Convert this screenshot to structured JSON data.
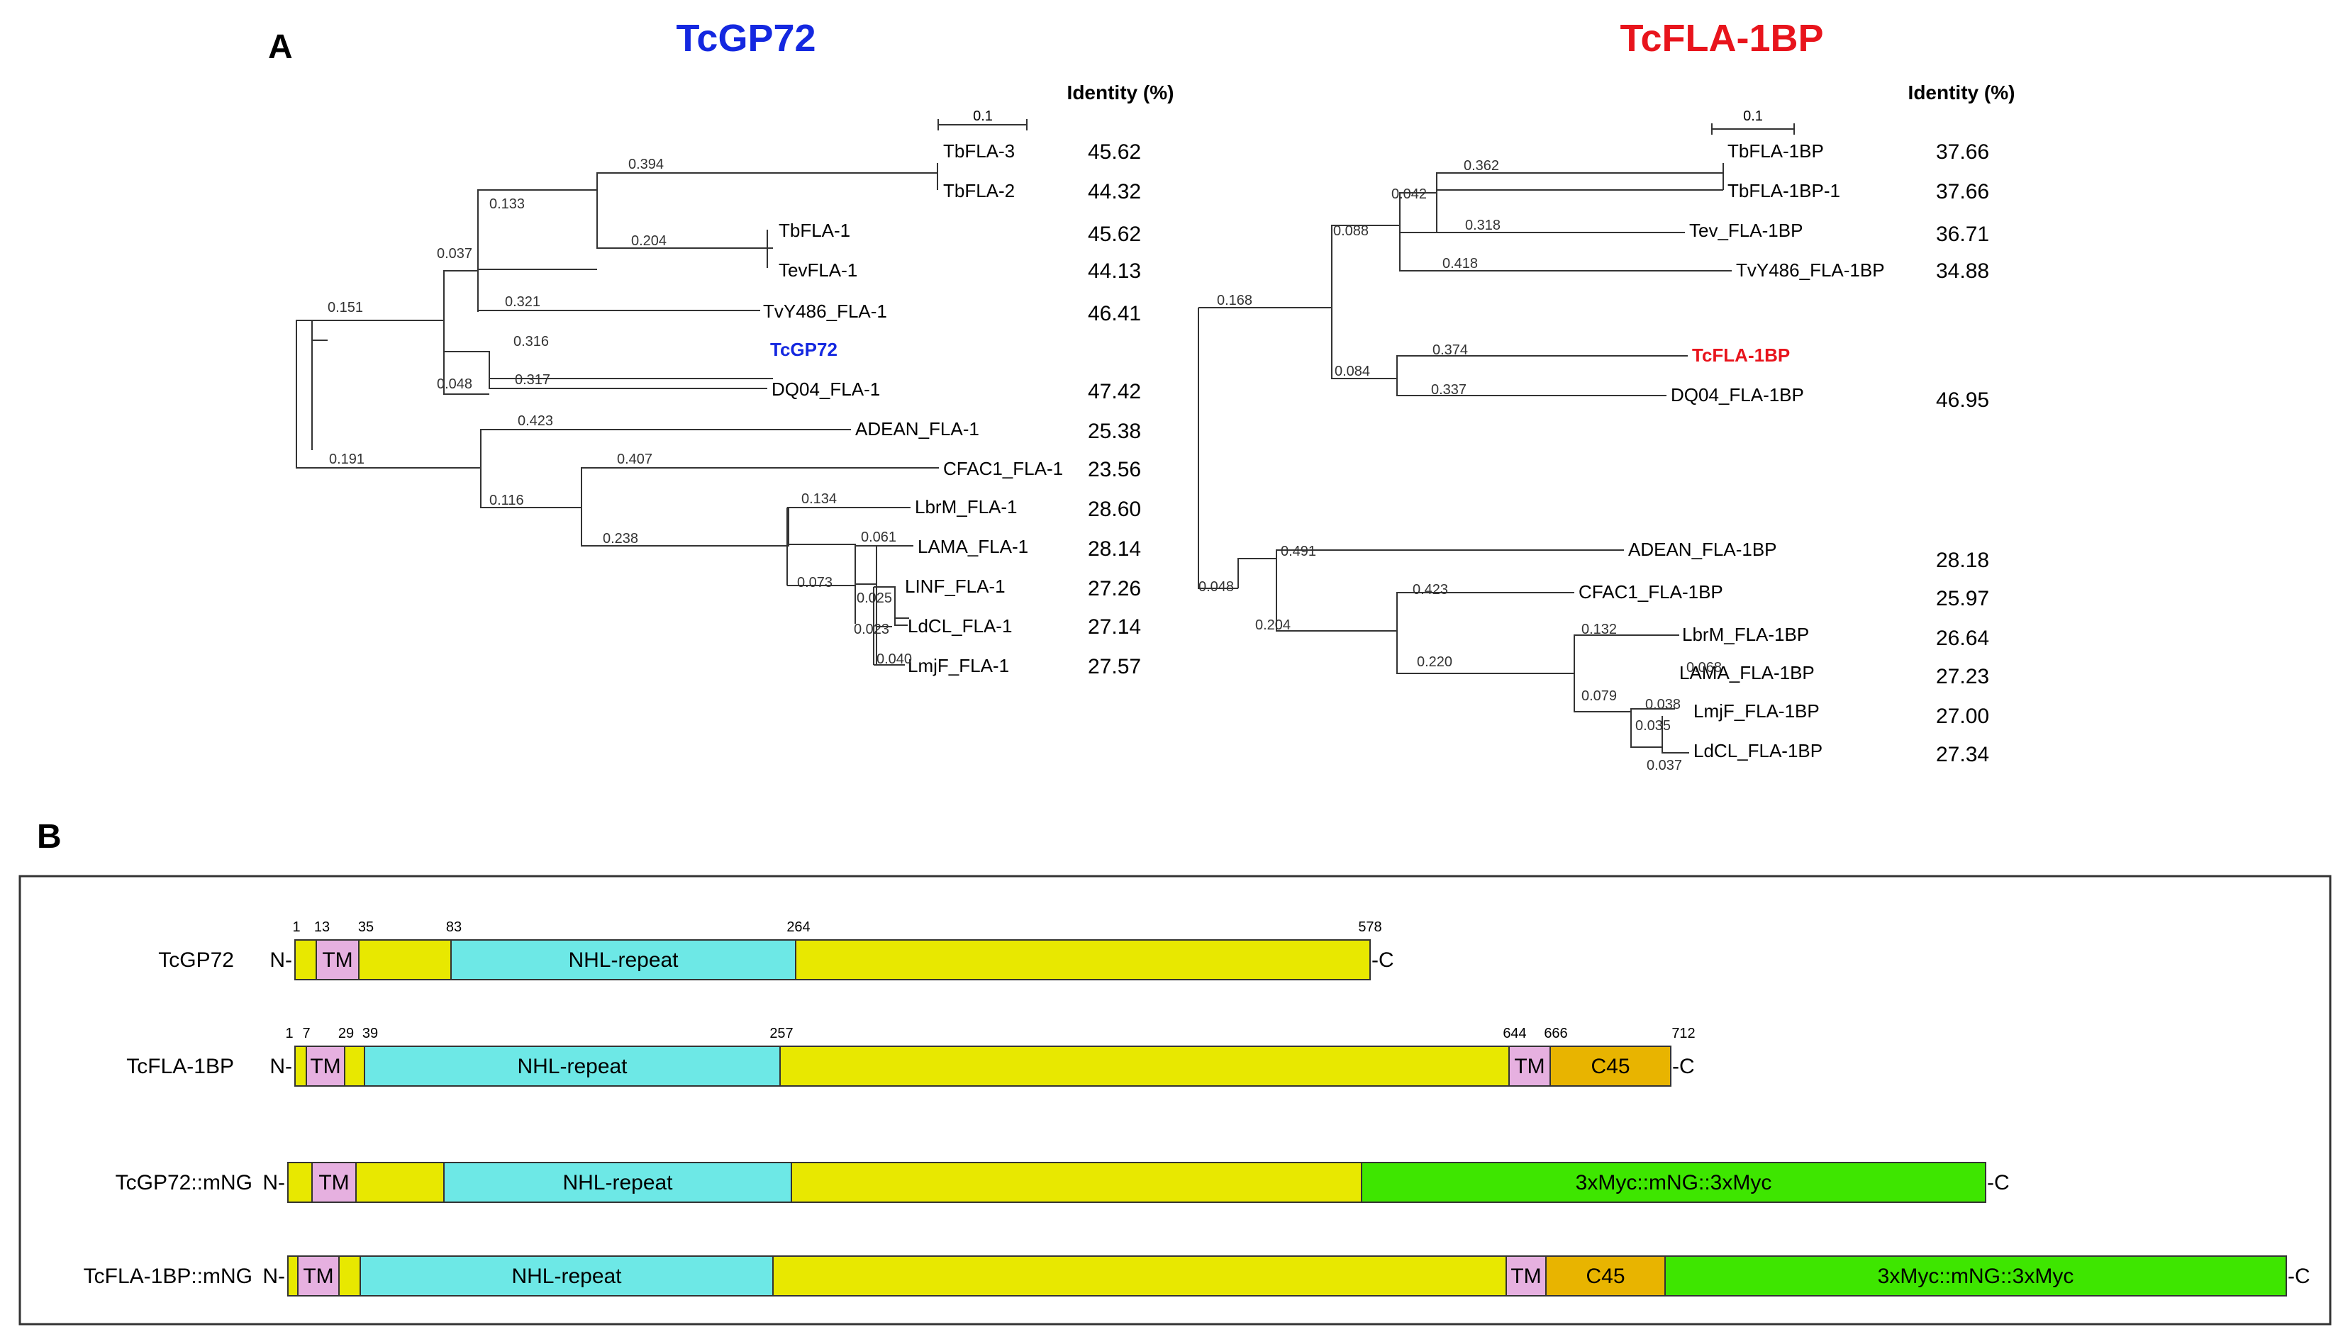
{
  "panel_a": {
    "label": "A",
    "left_title": "TcGP72",
    "right_title": "TcFLA-1BP",
    "identity_header": "Identity (%)",
    "identity_header_right": "Identity  (%)",
    "scale_label": "0.1",
    "colors": {
      "left_title": "#1428e0",
      "right_title": "#e8141c",
      "line": "#333333"
    },
    "left_tree": {
      "leaves": [
        {
          "name": "TbFLA-3",
          "identity": "45.62"
        },
        {
          "name": "TbFLA-2",
          "identity": "44.32"
        },
        {
          "name": "TbFLA-1",
          "identity": "45.62"
        },
        {
          "name": "TevFLA-1",
          "identity": "44.13"
        },
        {
          "name": "TvY486_FLA-1",
          "identity": "46.41"
        },
        {
          "name": "TcGP72",
          "identity": "",
          "highlight": true
        },
        {
          "name": "DQ04_FLA-1",
          "identity": "47.42"
        },
        {
          "name": "ADEAN_FLA-1",
          "identity": "25.38"
        },
        {
          "name": "CFAC1_FLA-1",
          "identity": "23.56"
        },
        {
          "name": "LbrM_FLA-1",
          "identity": "28.60"
        },
        {
          "name": "LAMA_FLA-1",
          "identity": "28.14"
        },
        {
          "name": "LINF_FLA-1",
          "identity": "27.26"
        },
        {
          "name": "LdCL_FLA-1",
          "identity": "27.14"
        },
        {
          "name": "LmjF_FLA-1",
          "identity": "27.57"
        }
      ],
      "branch_lengths": [
        "0.394",
        "0.133",
        "0.204",
        "0.037",
        "0.321",
        "0.151",
        "0.316",
        "0.048",
        "0.317",
        "0.423",
        "0.191",
        "0.407",
        "0.116",
        "0.134",
        "0.238",
        "0.061",
        "0.073",
        "0.025",
        "0.023",
        "0.040"
      ]
    },
    "right_tree": {
      "leaves": [
        {
          "name": "TbFLA-1BP",
          "identity": "37.66"
        },
        {
          "name": "TbFLA-1BP-1",
          "identity": "37.66"
        },
        {
          "name": "Tev_FLA-1BP",
          "identity": "36.71"
        },
        {
          "name": "TvY486_FLA-1BP",
          "identity": "34.88"
        },
        {
          "name": "TcFLA-1BP",
          "identity": "",
          "highlight": true
        },
        {
          "name": "DQ04_FLA-1BP",
          "identity": "46.95"
        },
        {
          "name": "ADEAN_FLA-1BP",
          "identity": "28.18"
        },
        {
          "name": "CFAC1_FLA-1BP",
          "identity": "25.97"
        },
        {
          "name": "LbrM_FLA-1BP",
          "identity": "26.64"
        },
        {
          "name": "LAMA_FLA-1BP",
          "identity": "27.23"
        },
        {
          "name": "LmjF_FLA-1BP",
          "identity": "27.00"
        },
        {
          "name": "LdCL_FLA-1BP",
          "identity": "27.34"
        }
      ],
      "branch_lengths": [
        "0.362",
        "0.042",
        "0.318",
        "0.088",
        "0.418",
        "0.168",
        "0.374",
        "0.084",
        "0.337",
        "0.491",
        "0.048",
        "0.423",
        "0.204",
        "0.132",
        "0.220",
        "0.068",
        "0.079",
        "0.038",
        "0.035",
        "0.037"
      ]
    }
  },
  "panel_b": {
    "label": "B",
    "n_terminal": "N-",
    "c_terminal": "-C",
    "colors": {
      "plain": "#e8e800",
      "tm": "#e6b0e0",
      "nhl": "#6de8e6",
      "c45": "#e8b400",
      "mng": "#3ee600"
    },
    "constructs": [
      {
        "name": "TcGP72",
        "positions": [
          "1",
          "13",
          "35",
          "83",
          "264",
          "578"
        ],
        "segments": [
          {
            "type": "plain",
            "label": ""
          },
          {
            "type": "tm",
            "label": "TM"
          },
          {
            "type": "plain",
            "label": ""
          },
          {
            "type": "nhl",
            "label": "NHL-repeat"
          },
          {
            "type": "plain",
            "label": ""
          }
        ]
      },
      {
        "name": "TcFLA-1BP",
        "positions": [
          "1",
          "7",
          "29",
          "39",
          "257",
          "644",
          "666",
          "712"
        ],
        "segments": [
          {
            "type": "plain",
            "label": ""
          },
          {
            "type": "tm",
            "label": "TM"
          },
          {
            "type": "plain",
            "label": ""
          },
          {
            "type": "nhl",
            "label": "NHL-repeat"
          },
          {
            "type": "plain",
            "label": ""
          },
          {
            "type": "tm",
            "label": "TM"
          },
          {
            "type": "c45",
            "label": "C45"
          }
        ]
      },
      {
        "name": "TcGP72::mNG",
        "positions": [],
        "segments": [
          {
            "type": "plain",
            "label": ""
          },
          {
            "type": "tm",
            "label": "TM"
          },
          {
            "type": "plain",
            "label": ""
          },
          {
            "type": "nhl",
            "label": "NHL-repeat"
          },
          {
            "type": "plain",
            "label": ""
          },
          {
            "type": "mng",
            "label": "3xMyc::mNG::3xMyc"
          }
        ]
      },
      {
        "name": "TcFLA-1BP::mNG",
        "positions": [],
        "segments": [
          {
            "type": "plain",
            "label": ""
          },
          {
            "type": "tm",
            "label": "TM"
          },
          {
            "type": "plain",
            "label": ""
          },
          {
            "type": "nhl",
            "label": "NHL-repeat"
          },
          {
            "type": "plain",
            "label": ""
          },
          {
            "type": "tm",
            "label": "TM"
          },
          {
            "type": "c45",
            "label": "C45"
          },
          {
            "type": "mng",
            "label": "3xMyc::mNG::3xMyc"
          }
        ]
      }
    ]
  }
}
